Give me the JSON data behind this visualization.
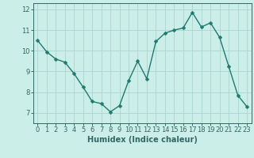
{
  "x": [
    0,
    1,
    2,
    3,
    4,
    5,
    6,
    7,
    8,
    9,
    10,
    11,
    12,
    13,
    14,
    15,
    16,
    17,
    18,
    19,
    20,
    21,
    22,
    23
  ],
  "y": [
    10.5,
    9.95,
    9.6,
    9.45,
    8.9,
    8.25,
    7.55,
    7.45,
    7.05,
    7.35,
    8.55,
    9.5,
    8.65,
    10.45,
    10.85,
    11.0,
    11.1,
    11.85,
    11.15,
    11.35,
    10.65,
    9.25,
    7.85,
    7.3
  ],
  "line_color": "#1f7a70",
  "marker_color": "#1f7a70",
  "bg_color": "#cceee8",
  "grid_color": "#aad4ce",
  "axis_color": "#336666",
  "xlabel": "Humidex (Indice chaleur)",
  "ylim": [
    6.5,
    12.3
  ],
  "xlim": [
    -0.5,
    23.5
  ],
  "yticks": [
    7,
    8,
    9,
    10,
    11,
    12
  ],
  "xticks": [
    0,
    1,
    2,
    3,
    4,
    5,
    6,
    7,
    8,
    9,
    10,
    11,
    12,
    13,
    14,
    15,
    16,
    17,
    18,
    19,
    20,
    21,
    22,
    23
  ],
  "xtick_labels": [
    "0",
    "1",
    "2",
    "3",
    "4",
    "5",
    "6",
    "7",
    "8",
    "9",
    "10",
    "11",
    "12",
    "13",
    "14",
    "15",
    "16",
    "17",
    "18",
    "19",
    "20",
    "21",
    "22",
    "23"
  ],
  "linewidth": 1.0,
  "markersize": 2.5,
  "xlabel_fontsize": 7,
  "tick_fontsize": 6
}
